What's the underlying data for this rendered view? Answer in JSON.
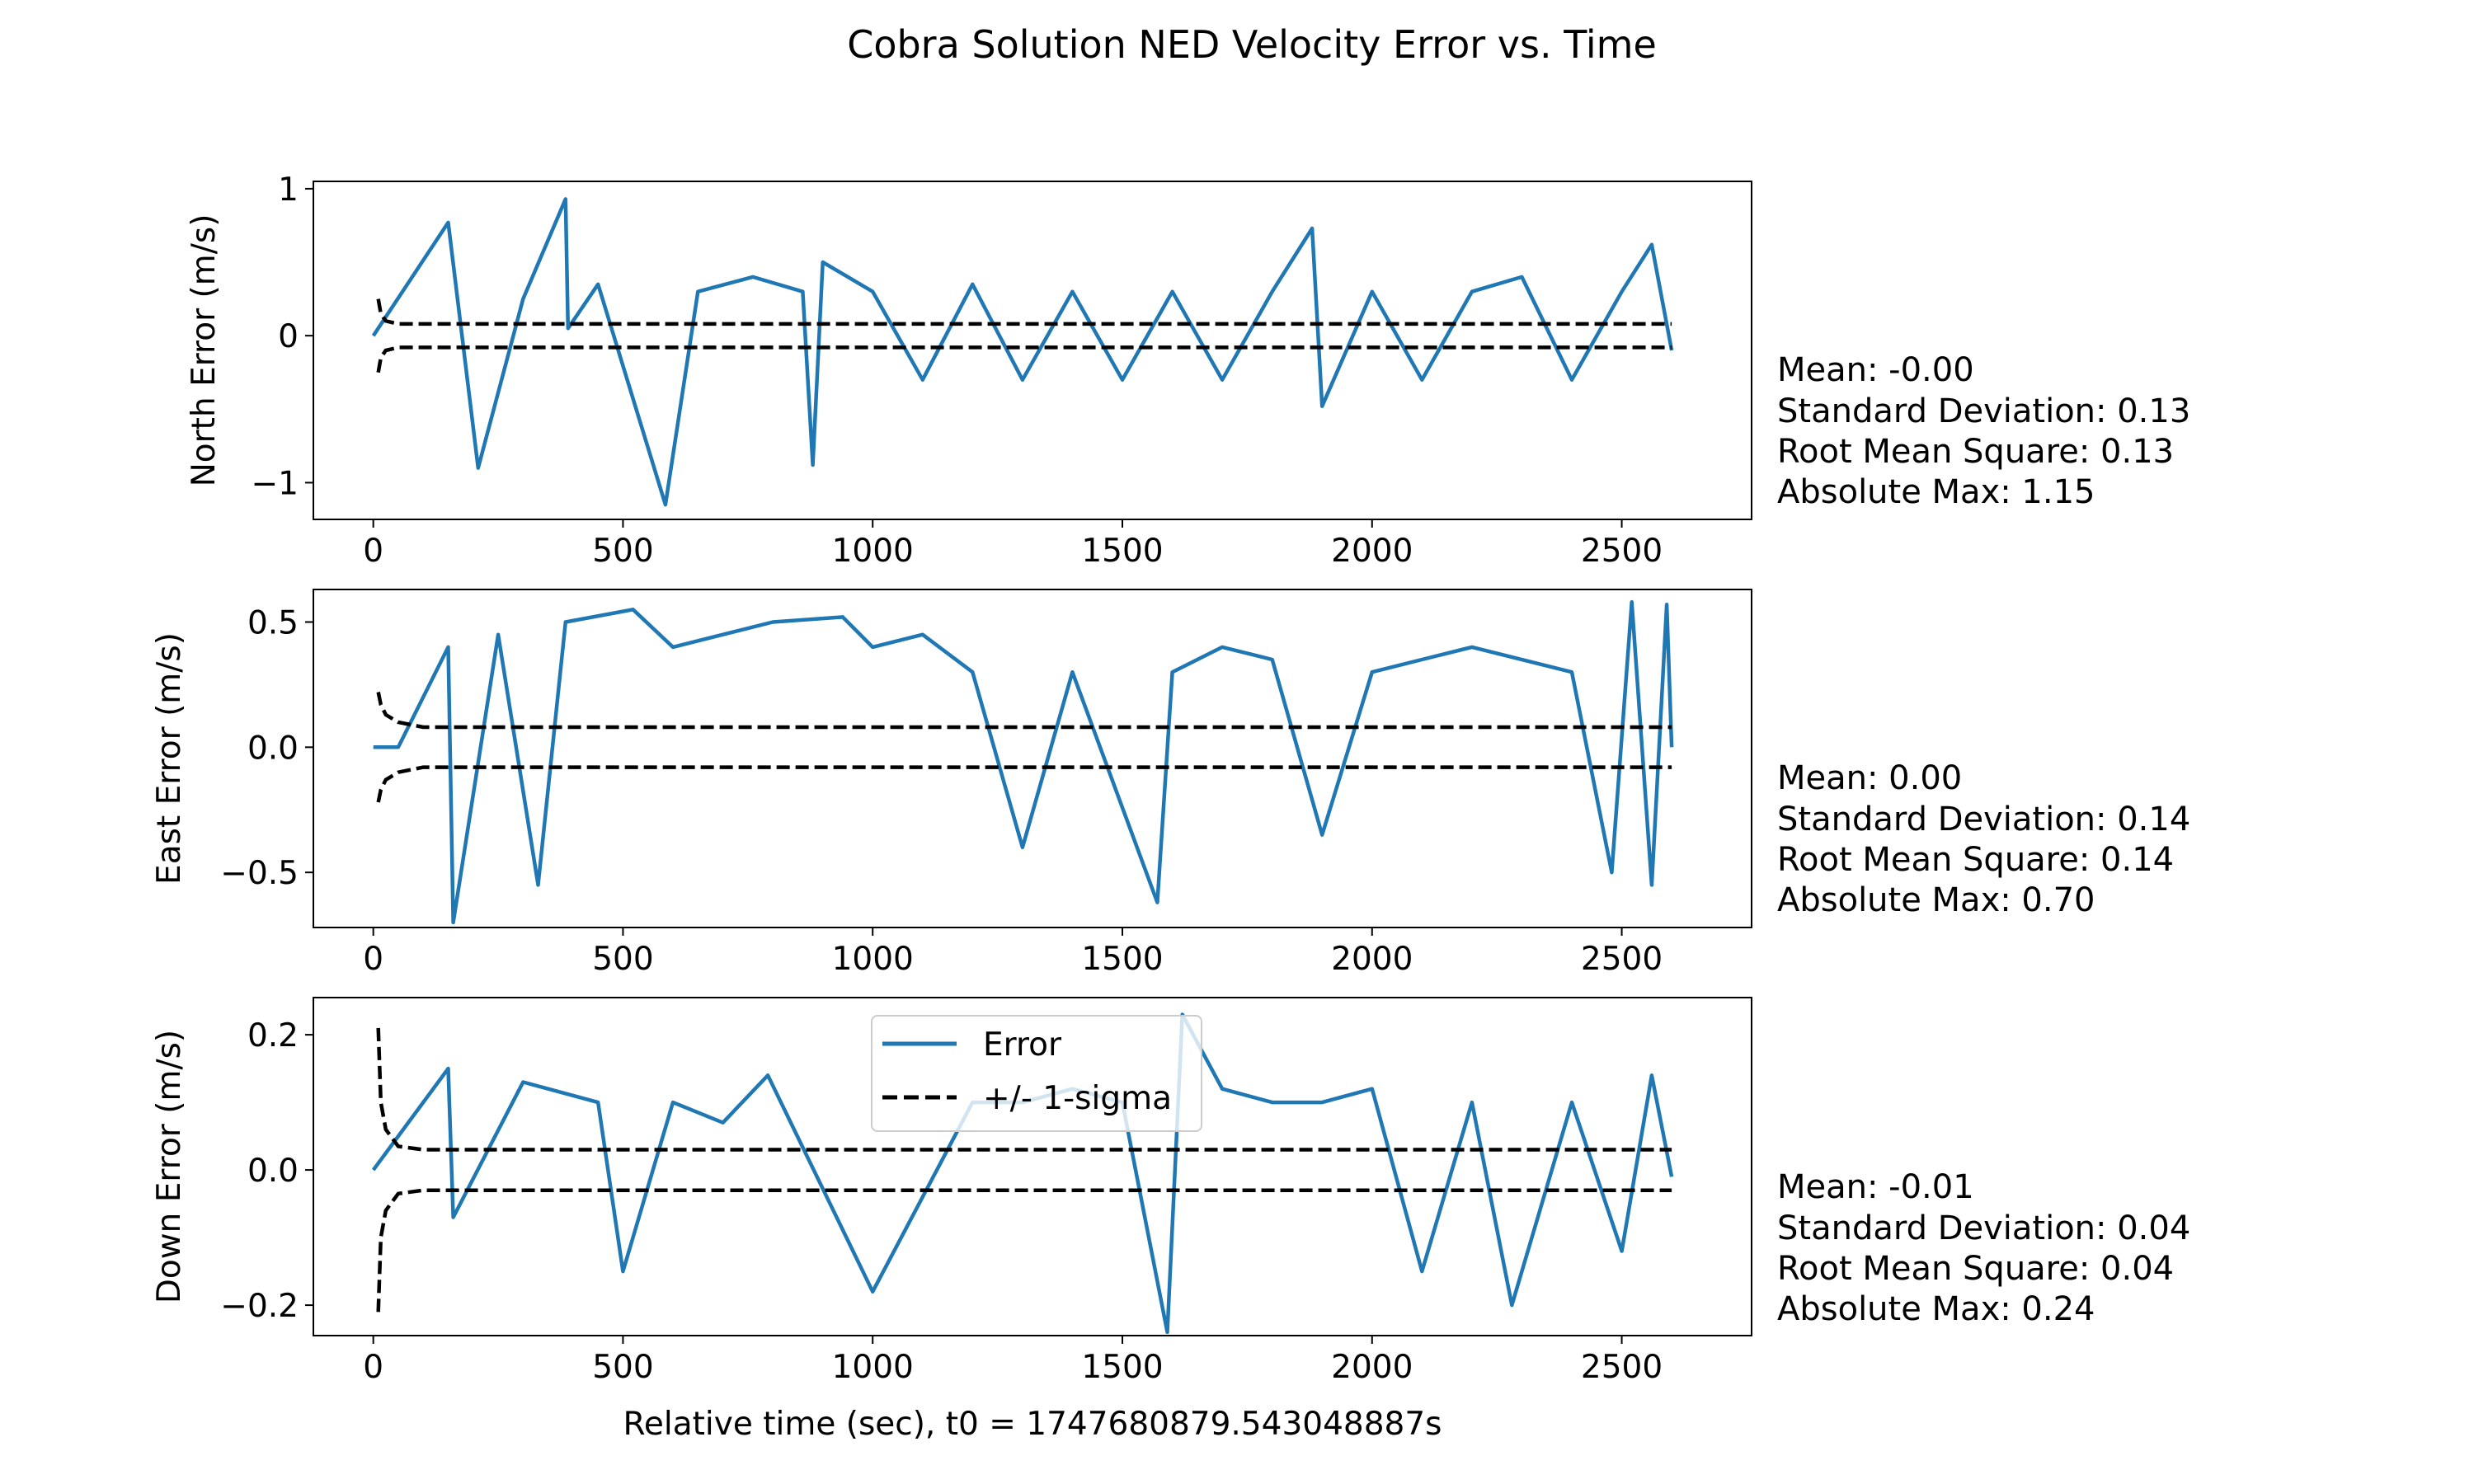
{
  "figure": {
    "title": "Cobra Solution NED Velocity Error vs. Time",
    "xlabel": "Relative time (sec), t0 = 1747680879.543048887s"
  },
  "legend": {
    "entries": [
      {
        "label": "Error",
        "style": "solid",
        "color": "#1f77b4"
      },
      {
        "label": "+/- 1-sigma",
        "style": "dashed",
        "color": "#000000"
      }
    ]
  },
  "colors": {
    "error": "#1f77b4",
    "sigma": "#000000"
  },
  "chart_data": [
    {
      "type": "line",
      "ylabel": "North Error (m/s)",
      "xlim": [
        -120,
        2760
      ],
      "ylim": [
        -1.25,
        1.05
      ],
      "xticks": [
        0,
        500,
        1000,
        1500,
        2000,
        2500
      ],
      "xtick_labels": [
        "0",
        "500",
        "1000",
        "1500",
        "2000",
        "2500"
      ],
      "yticks": [
        -1,
        0,
        1
      ],
      "ytick_labels": [
        "−1",
        "0",
        "1"
      ],
      "stats": [
        "Mean: -0.00",
        "Standard Deviation: 0.13",
        "Root Mean Square: 0.13",
        "Absolute Max: 1.15"
      ],
      "series": [
        {
          "name": "Error",
          "x": [
            0,
            150,
            210,
            300,
            385,
            390,
            450,
            585,
            650,
            760,
            860,
            880,
            900,
            1000,
            1100,
            1200,
            1300,
            1400,
            1500,
            1600,
            1700,
            1800,
            1880,
            1900,
            2000,
            2100,
            2200,
            2300,
            2400,
            2500,
            2560,
            2600
          ],
          "y": [
            0.0,
            0.77,
            -0.9,
            0.25,
            0.93,
            0.05,
            0.35,
            -1.15,
            0.3,
            0.4,
            0.3,
            -0.88,
            0.5,
            0.3,
            -0.3,
            0.35,
            -0.3,
            0.3,
            -0.3,
            0.3,
            -0.3,
            0.3,
            0.73,
            -0.48,
            0.3,
            -0.3,
            0.3,
            0.4,
            -0.3,
            0.3,
            0.62,
            -0.1
          ]
        },
        {
          "name": "+/- 1-sigma",
          "x": [
            10,
            15,
            25,
            50,
            100,
            2600
          ],
          "upper": [
            0.25,
            0.15,
            0.1,
            0.08,
            0.08,
            0.08
          ],
          "lower": [
            -0.25,
            -0.15,
            -0.1,
            -0.08,
            -0.08,
            -0.08
          ]
        }
      ]
    },
    {
      "type": "line",
      "ylabel": "East Error (m/s)",
      "xlim": [
        -120,
        2760
      ],
      "ylim": [
        -0.72,
        0.63
      ],
      "xticks": [
        0,
        500,
        1000,
        1500,
        2000,
        2500
      ],
      "xtick_labels": [
        "0",
        "500",
        "1000",
        "1500",
        "2000",
        "2500"
      ],
      "yticks": [
        -0.5,
        0.0,
        0.5
      ],
      "ytick_labels": [
        "−0.5",
        "0.0",
        "0.5"
      ],
      "stats": [
        "Mean: 0.00",
        "Standard Deviation: 0.14",
        "Root Mean Square: 0.14",
        "Absolute Max: 0.70"
      ],
      "series": [
        {
          "name": "Error",
          "x": [
            0,
            50,
            150,
            160,
            250,
            330,
            385,
            520,
            600,
            700,
            800,
            940,
            1000,
            1100,
            1200,
            1300,
            1400,
            1570,
            1600,
            1700,
            1800,
            1900,
            2000,
            2100,
            2200,
            2400,
            2480,
            2520,
            2560,
            2590,
            2600
          ],
          "y": [
            0.0,
            0.0,
            0.4,
            -0.7,
            0.45,
            -0.55,
            0.5,
            0.55,
            0.4,
            0.45,
            0.5,
            0.52,
            0.4,
            0.45,
            0.3,
            -0.4,
            0.3,
            -0.62,
            0.3,
            0.4,
            0.35,
            -0.35,
            0.3,
            0.35,
            0.4,
            0.3,
            -0.5,
            0.58,
            -0.55,
            0.57,
            0.0
          ]
        },
        {
          "name": "+/- 1-sigma",
          "x": [
            10,
            15,
            25,
            50,
            100,
            2600
          ],
          "upper": [
            0.22,
            0.17,
            0.13,
            0.1,
            0.08,
            0.08
          ],
          "lower": [
            -0.22,
            -0.17,
            -0.13,
            -0.1,
            -0.08,
            -0.08
          ]
        }
      ]
    },
    {
      "type": "line",
      "ylabel": "Down Error (m/s)",
      "xlim": [
        -120,
        2760
      ],
      "ylim": [
        -0.245,
        0.255
      ],
      "xticks": [
        0,
        500,
        1000,
        1500,
        2000,
        2500
      ],
      "xtick_labels": [
        "0",
        "500",
        "1000",
        "1500",
        "2000",
        "2500"
      ],
      "yticks": [
        -0.2,
        0.0,
        0.2
      ],
      "ytick_labels": [
        "−0.2",
        "0.0",
        "0.2"
      ],
      "stats": [
        "Mean: -0.01",
        "Standard Deviation: 0.04",
        "Root Mean Square: 0.04",
        "Absolute Max: 0.24"
      ],
      "series": [
        {
          "name": "Error",
          "x": [
            0,
            150,
            160,
            300,
            450,
            500,
            600,
            700,
            790,
            1000,
            1200,
            1300,
            1400,
            1500,
            1590,
            1620,
            1700,
            1800,
            1900,
            2000,
            2100,
            2200,
            2280,
            2400,
            2500,
            2560,
            2600
          ],
          "y": [
            0.0,
            0.15,
            -0.07,
            0.13,
            0.1,
            -0.15,
            0.1,
            0.07,
            0.14,
            -0.18,
            0.1,
            0.1,
            0.12,
            0.1,
            -0.24,
            0.23,
            0.12,
            0.1,
            0.1,
            0.12,
            -0.15,
            0.1,
            -0.2,
            0.1,
            -0.12,
            0.14,
            -0.01
          ]
        },
        {
          "name": "+/- 1-sigma",
          "x": [
            10,
            15,
            25,
            50,
            100,
            2600
          ],
          "upper": [
            0.21,
            0.1,
            0.06,
            0.035,
            0.03,
            0.03
          ],
          "lower": [
            -0.21,
            -0.1,
            -0.06,
            -0.035,
            -0.03,
            -0.03
          ]
        }
      ]
    }
  ]
}
